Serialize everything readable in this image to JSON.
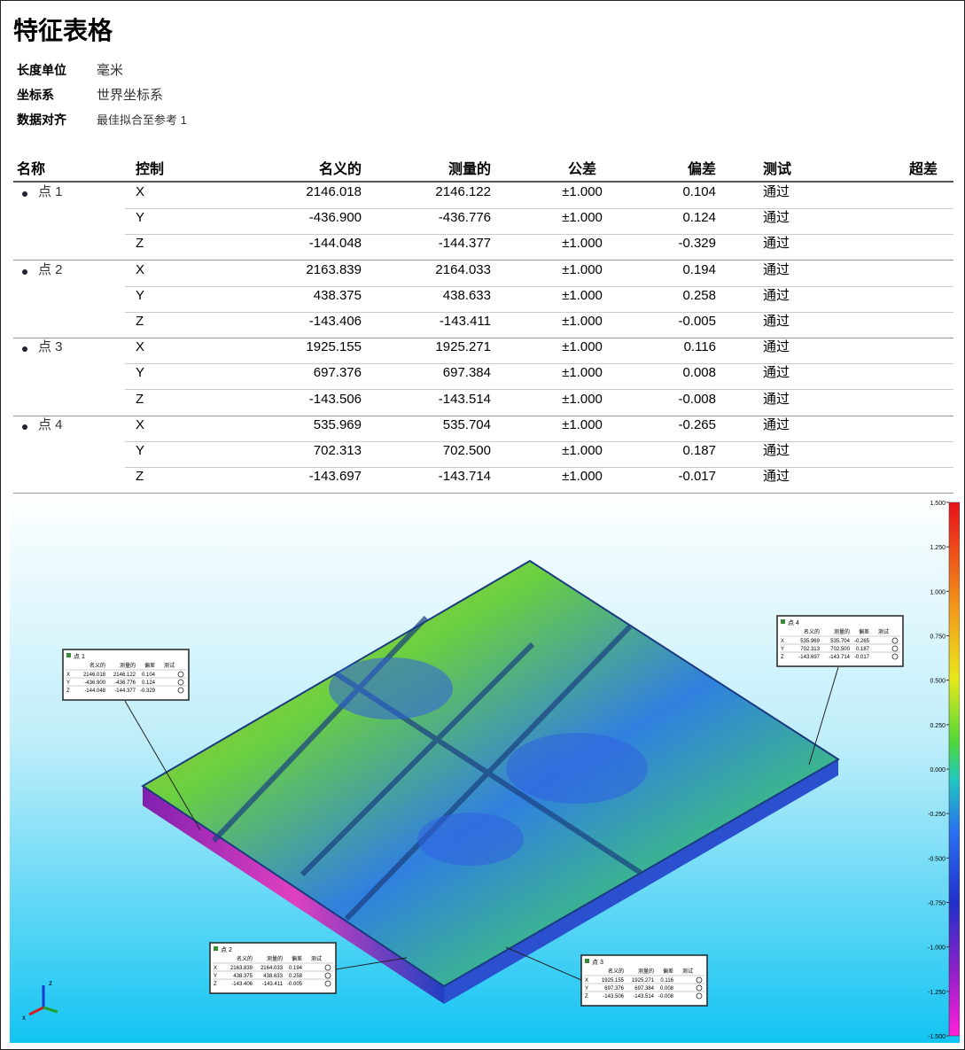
{
  "header": {
    "title": "特征表格"
  },
  "meta": [
    {
      "label": "长度单位",
      "value": "毫米"
    },
    {
      "label": "坐标系",
      "value": "世界坐标系"
    },
    {
      "label": "数据对齐",
      "value": "最佳拟合至参考 1"
    }
  ],
  "table": {
    "columns": [
      "名称",
      "控制",
      "名义的",
      "测量的",
      "公差",
      "偏差",
      "测试",
      "超差"
    ],
    "groups": [
      {
        "name": "点 1",
        "rows": [
          [
            "X",
            "2146.018",
            "2146.122",
            "±1.000",
            "0.104",
            "通过"
          ],
          [
            "Y",
            "-436.900",
            "-436.776",
            "±1.000",
            "0.124",
            "通过"
          ],
          [
            "Z",
            "-144.048",
            "-144.377",
            "±1.000",
            "-0.329",
            "通过"
          ]
        ]
      },
      {
        "name": "点 2",
        "rows": [
          [
            "X",
            "2163.839",
            "2164.033",
            "±1.000",
            "0.194",
            "通过"
          ],
          [
            "Y",
            "438.375",
            "438.633",
            "±1.000",
            "0.258",
            "通过"
          ],
          [
            "Z",
            "-143.406",
            "-143.411",
            "±1.000",
            "-0.005",
            "通过"
          ]
        ]
      },
      {
        "name": "点 3",
        "rows": [
          [
            "X",
            "1925.155",
            "1925.271",
            "±1.000",
            "0.116",
            "通过"
          ],
          [
            "Y",
            "697.376",
            "697.384",
            "±1.000",
            "0.008",
            "通过"
          ],
          [
            "Z",
            "-143.506",
            "-143.514",
            "±1.000",
            "-0.008",
            "通过"
          ]
        ]
      },
      {
        "name": "点 4",
        "rows": [
          [
            "X",
            "535.969",
            "535.704",
            "±1.000",
            "-0.265",
            "通过"
          ],
          [
            "Y",
            "702.313",
            "702.500",
            "±1.000",
            "0.187",
            "通过"
          ],
          [
            "Z",
            "-143.697",
            "-143.714",
            "±1.000",
            "-0.017",
            "通过"
          ]
        ]
      }
    ]
  },
  "colorbar": {
    "ticks": [
      "1.500",
      "1.250",
      "1.000",
      "0.750",
      "0.500",
      "0.250",
      "0.000",
      "-0.250",
      "-0.500",
      "-0.750",
      "-1.000",
      "-1.250",
      "-1.500"
    ]
  },
  "triad": [
    "z",
    "x"
  ]
}
